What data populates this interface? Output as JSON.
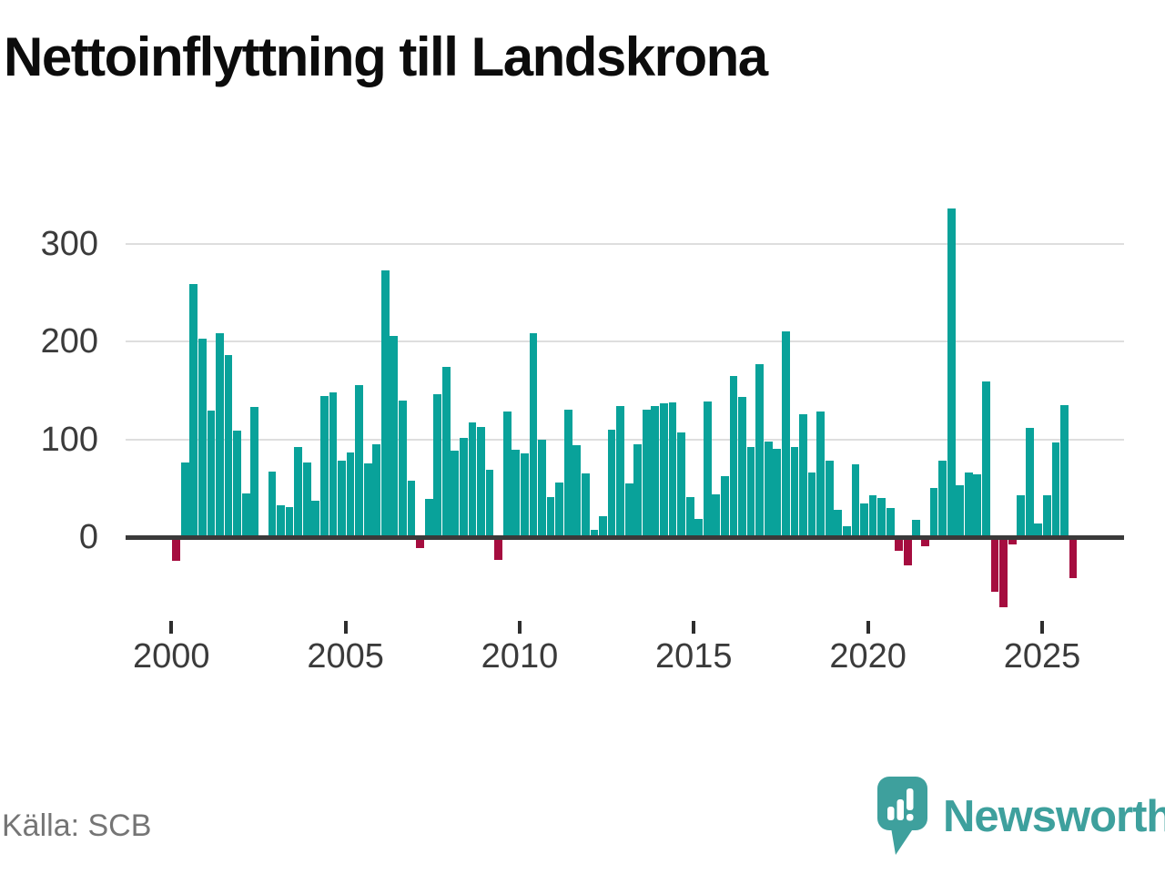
{
  "title": "Nettoinflyttning till Landskrona",
  "source": "Källa: SCB",
  "logo": {
    "text": "Newsworthy",
    "color": "#3ea09d"
  },
  "colors": {
    "positive": "#09a29a",
    "negative": "#a50d3f",
    "gridline": "#dedede",
    "axis_line": "#3a3a3a",
    "axis_text": "#3b3b3b",
    "title_text": "#0c0c0c",
    "source_text": "#757575"
  },
  "chart_data": {
    "type": "bar",
    "title": "Nettoinflyttning till Landskrona",
    "xlabel": "",
    "ylabel": "",
    "frequency": "quarterly",
    "legend": "none",
    "grid": "horizontal",
    "ylim": [
      -85,
      345
    ],
    "y_ticks": [
      0,
      100,
      200,
      300
    ],
    "x_tick_years": [
      2000,
      2005,
      2010,
      2015,
      2020,
      2025
    ],
    "categories": [
      "2000 Q1",
      "2000 Q2",
      "2000 Q3",
      "2000 Q4",
      "2001 Q1",
      "2001 Q2",
      "2001 Q3",
      "2001 Q4",
      "2002 Q1",
      "2002 Q2",
      "2002 Q3",
      "2002 Q4",
      "2003 Q1",
      "2003 Q2",
      "2003 Q3",
      "2003 Q4",
      "2004 Q1",
      "2004 Q2",
      "2004 Q3",
      "2004 Q4",
      "2005 Q1",
      "2005 Q2",
      "2005 Q3",
      "2005 Q4",
      "2006 Q1",
      "2006 Q2",
      "2006 Q3",
      "2006 Q4",
      "2007 Q1",
      "2007 Q2",
      "2007 Q3",
      "2007 Q4",
      "2008 Q1",
      "2008 Q2",
      "2008 Q3",
      "2008 Q4",
      "2009 Q1",
      "2009 Q2",
      "2009 Q3",
      "2009 Q4",
      "2010 Q1",
      "2010 Q2",
      "2010 Q3",
      "2010 Q4",
      "2011 Q1",
      "2011 Q2",
      "2011 Q3",
      "2011 Q4",
      "2012 Q1",
      "2012 Q2",
      "2012 Q3",
      "2012 Q4",
      "2013 Q1",
      "2013 Q2",
      "2013 Q3",
      "2013 Q4",
      "2014 Q1",
      "2014 Q2",
      "2014 Q3",
      "2014 Q4",
      "2015 Q1",
      "2015 Q2",
      "2015 Q3",
      "2015 Q4",
      "2016 Q1",
      "2016 Q2",
      "2016 Q3",
      "2016 Q4",
      "2017 Q1",
      "2017 Q2",
      "2017 Q3",
      "2017 Q4",
      "2018 Q1",
      "2018 Q2",
      "2018 Q3",
      "2018 Q4",
      "2019 Q1",
      "2019 Q2",
      "2019 Q3",
      "2019 Q4",
      "2020 Q1",
      "2020 Q2",
      "2020 Q3",
      "2020 Q4",
      "2021 Q1",
      "2021 Q2",
      "2021 Q3",
      "2021 Q4",
      "2022 Q1",
      "2022 Q2",
      "2022 Q3",
      "2022 Q4",
      "2023 Q1",
      "2023 Q2",
      "2023 Q3",
      "2023 Q4",
      "2024 Q1",
      "2024 Q2",
      "2024 Q3",
      "2024 Q4",
      "2025 Q1",
      "2025 Q2",
      "2025 Q3",
      "2025 Q4"
    ],
    "values": [
      -24,
      76,
      259,
      203,
      129,
      208,
      186,
      109,
      45,
      133,
      2,
      67,
      33,
      31,
      92,
      76,
      37,
      144,
      148,
      78,
      87,
      155,
      75,
      95,
      273,
      206,
      140,
      58,
      -11,
      39,
      146,
      174,
      88,
      101,
      117,
      113,
      69,
      -23,
      128,
      89,
      86,
      208,
      100,
      41,
      56,
      130,
      94,
      65,
      7,
      21,
      110,
      134,
      55,
      95,
      130,
      134,
      137,
      138,
      107,
      41,
      19,
      139,
      44,
      62,
      165,
      143,
      92,
      177,
      98,
      90,
      210,
      92,
      126,
      66,
      128,
      78,
      28,
      11,
      74,
      34,
      43,
      40,
      30,
      -14,
      -29,
      18,
      -9,
      50,
      78,
      336,
      53,
      66,
      64,
      159,
      -56,
      -72,
      -7,
      43,
      112,
      14,
      43,
      97,
      135,
      -42
    ]
  }
}
